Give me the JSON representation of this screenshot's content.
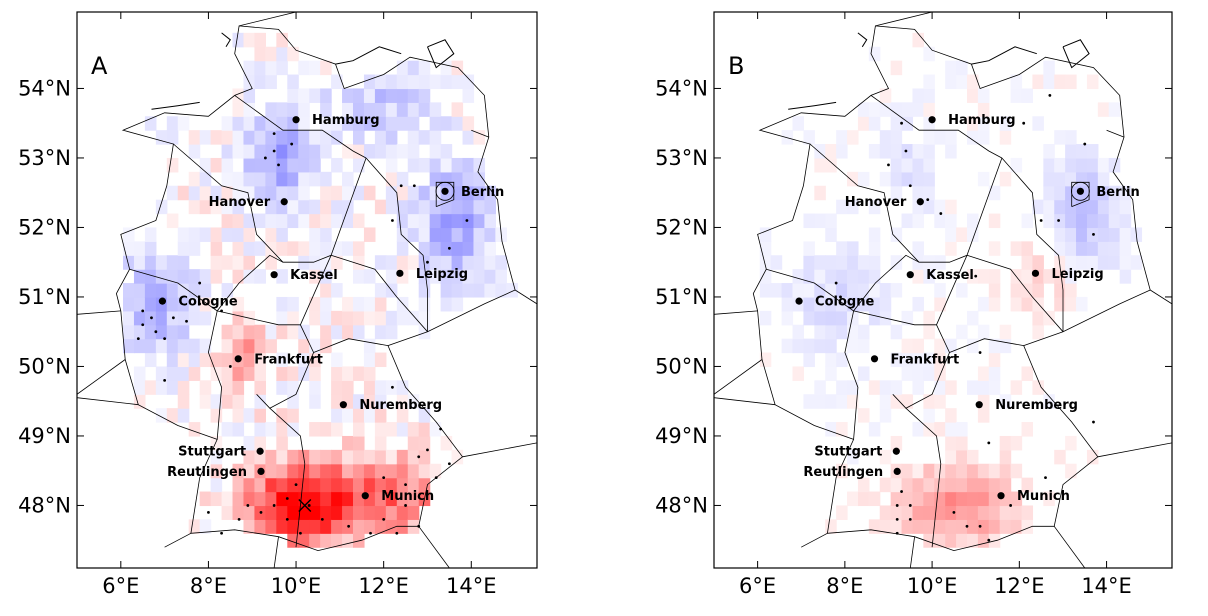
{
  "panels": [
    {
      "label": "A",
      "x_ticks": [
        "6°E",
        "8°E",
        "10°E",
        "12°E",
        "14°E"
      ],
      "y_ticks": [
        "54°N",
        "53°N",
        "52°N",
        "51°N",
        "50°N",
        "49°N",
        "48°N"
      ],
      "cities": [
        {
          "name": "Hamburg",
          "lon": 10.0,
          "lat": 53.55
        },
        {
          "name": "Berlin",
          "lon": 13.4,
          "lat": 52.52
        },
        {
          "name": "Hanover",
          "lon": 9.73,
          "lat": 52.37
        },
        {
          "name": "Kassel",
          "lon": 9.5,
          "lat": 51.32
        },
        {
          "name": "Leipzig",
          "lon": 12.37,
          "lat": 51.34
        },
        {
          "name": "Cologne",
          "lon": 6.95,
          "lat": 50.94
        },
        {
          "name": "Frankfurt",
          "lon": 8.68,
          "lat": 50.11
        },
        {
          "name": "Nuremberg",
          "lon": 11.08,
          "lat": 49.45
        },
        {
          "name": "Stuttgart",
          "lon": 9.18,
          "lat": 48.78
        },
        {
          "name": "Reutlingen",
          "lon": 9.2,
          "lat": 48.49
        },
        {
          "name": "Munich",
          "lon": 11.58,
          "lat": 48.14
        }
      ]
    },
    {
      "label": "B",
      "x_ticks": [
        "6°E",
        "8°E",
        "10°E",
        "12°E",
        "14°E"
      ],
      "y_ticks": [
        "54°N",
        "53°N",
        "52°N",
        "51°N",
        "50°N",
        "49°N",
        "48°N"
      ],
      "cities": [
        {
          "name": "Hamburg",
          "lon": 10.0,
          "lat": 53.55
        },
        {
          "name": "Berlin",
          "lon": 13.4,
          "lat": 52.52
        },
        {
          "name": "Hanover",
          "lon": 9.73,
          "lat": 52.37
        },
        {
          "name": "Kassel",
          "lon": 9.5,
          "lat": 51.32
        },
        {
          "name": "Leipzig",
          "lon": 12.37,
          "lat": 51.34
        },
        {
          "name": "Cologne",
          "lon": 6.95,
          "lat": 50.94
        },
        {
          "name": "Frankfurt",
          "lon": 8.68,
          "lat": 50.11
        },
        {
          "name": "Nuremberg",
          "lon": 11.08,
          "lat": 49.45
        },
        {
          "name": "Stuttgart",
          "lon": 9.18,
          "lat": 48.78
        },
        {
          "name": "Reutlingen",
          "lon": 9.2,
          "lat": 48.49
        },
        {
          "name": "Munich",
          "lon": 11.58,
          "lat": 48.14
        }
      ]
    }
  ],
  "colors": {
    "positive": "#ff0000",
    "negative": "#3333cc",
    "land_border": "#000000"
  }
}
